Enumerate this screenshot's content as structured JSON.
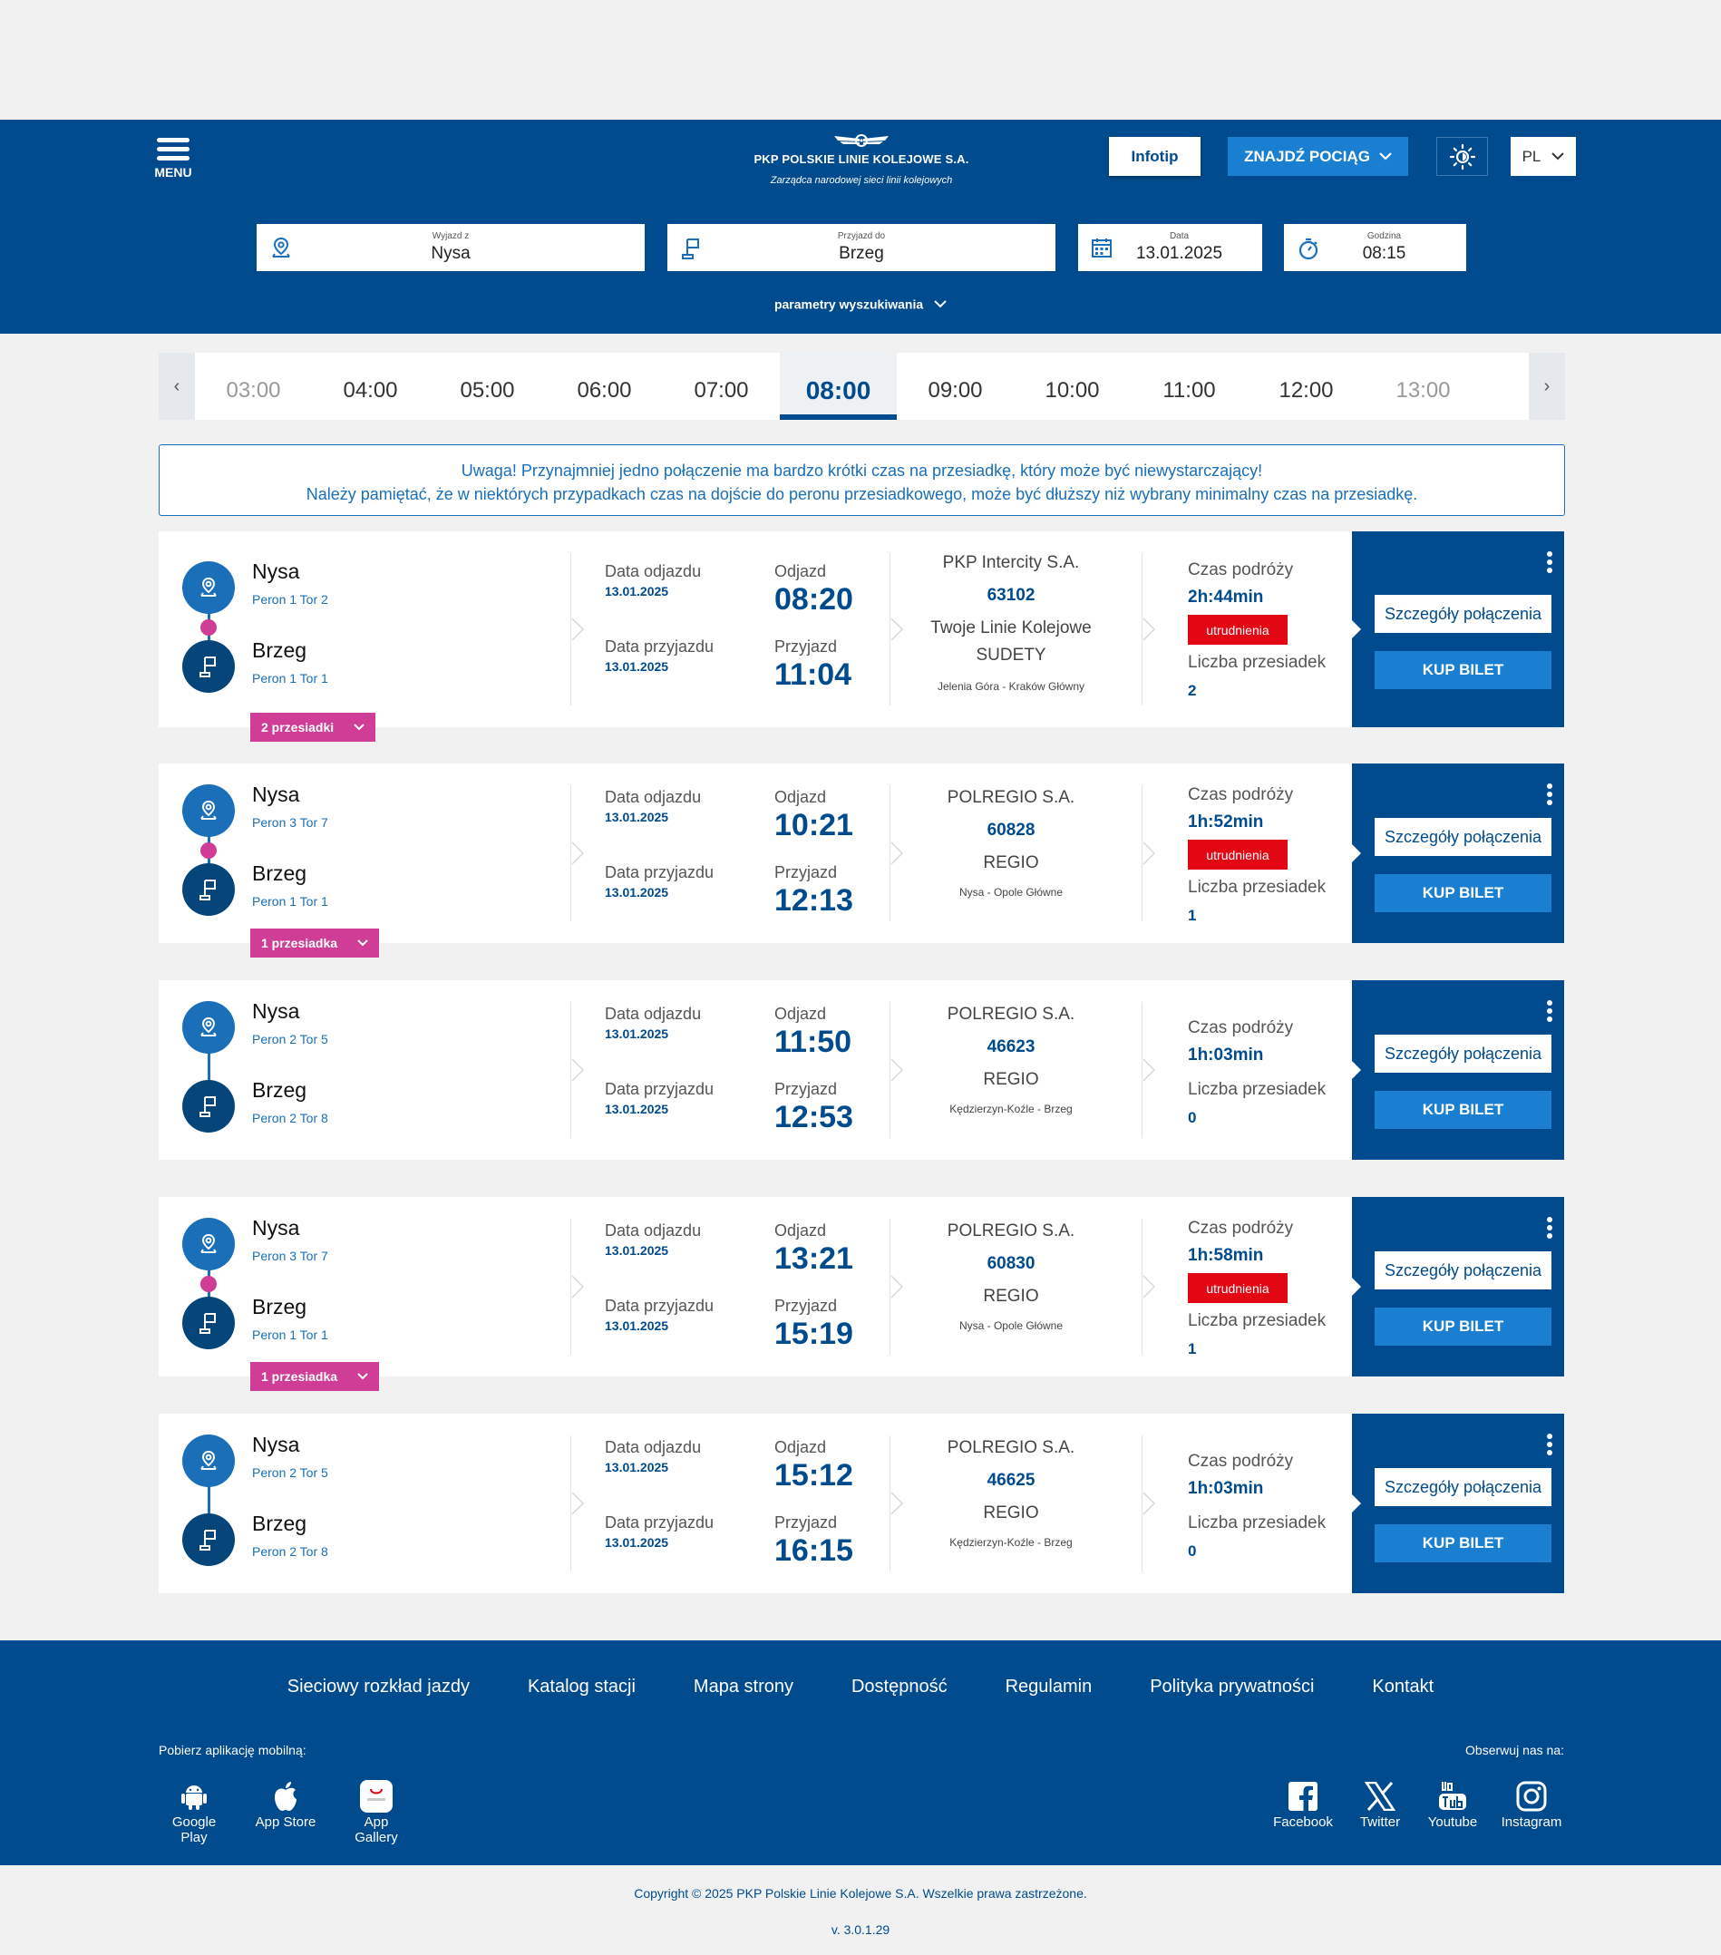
{
  "header": {
    "menu_label": "MENU",
    "logo_name": "PKP POLSKIE LINIE KOLEJOWE S.A.",
    "logo_tagline": "Zarządca narodowej sieci linii kolejowych",
    "infotip_label": "Infotip",
    "find_train_label": "ZNAJDŹ POCIĄG",
    "language": "PL"
  },
  "search": {
    "from_label": "Wyjazd z",
    "from_value": "Nysa",
    "to_label": "Przyjazd do",
    "to_value": "Brzeg",
    "date_label": "Data",
    "date_value": "13.01.2025",
    "time_label": "Godzina",
    "time_value": "08:15",
    "params_label": "parametry wyszukiwania"
  },
  "hours": [
    "03:00",
    "04:00",
    "05:00",
    "06:00",
    "07:00",
    "08:00",
    "09:00",
    "10:00",
    "11:00",
    "12:00",
    "13:00"
  ],
  "active_hour": "08:00",
  "warning": {
    "line1": "Uwaga! Przynajmniej jedno połączenie ma bardzo krótki czas na przesiadkę, który może być niewystarczający!",
    "line2": "Należy pamiętać, że w niektórych przypadkach czas na dojście do peronu przesiadkowego, może być dłuższy niż wybrany minimalny czas na przesiadkę."
  },
  "labels": {
    "dep_date": "Data odjazdu",
    "arr_date": "Data przyjazdu",
    "departure": "Odjazd",
    "arrival": "Przyjazd",
    "travel_time": "Czas podróży",
    "transfers_count": "Liczba przesiadek",
    "details_button": "Szczegóły połączenia",
    "buy_button": "KUP BILET",
    "difficulties": "utrudnienia"
  },
  "connections": [
    {
      "from": "Nysa",
      "from_platform": "Peron 1 Tor 2",
      "to": "Brzeg",
      "to_platform": "Peron 1 Tor 1",
      "dep_date": "13.01.2025",
      "arr_date": "13.01.2025",
      "dep_time": "08:20",
      "arr_time": "11:04",
      "carrier": "PKP Intercity S.A.",
      "train_number": "63102",
      "brand": "Twoje Linie Kolejowe",
      "train_name": "SUDETY",
      "route": "Jelenia Góra - Kraków Główny",
      "duration": "2h:44min",
      "difficulties": true,
      "transfers": "2",
      "transfers_badge": "2 przesiadki"
    },
    {
      "from": "Nysa",
      "from_platform": "Peron 3 Tor 7",
      "to": "Brzeg",
      "to_platform": "Peron 1 Tor 1",
      "dep_date": "13.01.2025",
      "arr_date": "13.01.2025",
      "dep_time": "10:21",
      "arr_time": "12:13",
      "carrier": "POLREGIO S.A.",
      "train_number": "60828",
      "brand": "REGIO",
      "train_name": "",
      "route": "Nysa - Opole Główne",
      "duration": "1h:52min",
      "difficulties": true,
      "transfers": "1",
      "transfers_badge": "1 przesiadka"
    },
    {
      "from": "Nysa",
      "from_platform": "Peron 2 Tor 5",
      "to": "Brzeg",
      "to_platform": "Peron 2 Tor 8",
      "dep_date": "13.01.2025",
      "arr_date": "13.01.2025",
      "dep_time": "11:50",
      "arr_time": "12:53",
      "carrier": "POLREGIO S.A.",
      "train_number": "46623",
      "brand": "REGIO",
      "train_name": "",
      "route": "Kędzierzyn-Koźle - Brzeg",
      "duration": "1h:03min",
      "difficulties": false,
      "transfers": "0",
      "transfers_badge": ""
    },
    {
      "from": "Nysa",
      "from_platform": "Peron 3 Tor 7",
      "to": "Brzeg",
      "to_platform": "Peron 1 Tor 1",
      "dep_date": "13.01.2025",
      "arr_date": "13.01.2025",
      "dep_time": "13:21",
      "arr_time": "15:19",
      "carrier": "POLREGIO S.A.",
      "train_number": "60830",
      "brand": "REGIO",
      "train_name": "",
      "route": "Nysa - Opole Główne",
      "duration": "1h:58min",
      "difficulties": true,
      "transfers": "1",
      "transfers_badge": "1 przesiadka"
    },
    {
      "from": "Nysa",
      "from_platform": "Peron 2 Tor 5",
      "to": "Brzeg",
      "to_platform": "Peron 2 Tor 8",
      "dep_date": "13.01.2025",
      "arr_date": "13.01.2025",
      "dep_time": "15:12",
      "arr_time": "16:15",
      "carrier": "POLREGIO S.A.",
      "train_number": "46625",
      "brand": "REGIO",
      "train_name": "",
      "route": "Kędzierzyn-Koźle - Brzeg",
      "duration": "1h:03min",
      "difficulties": false,
      "transfers": "0",
      "transfers_badge": ""
    }
  ],
  "footer": {
    "links": [
      "Sieciowy rozkład jazdy",
      "Katalog stacji",
      "Mapa strony",
      "Dostępność",
      "Regulamin",
      "Polityka prywatności",
      "Kontakt"
    ],
    "app_label": "Pobierz aplikację mobilną:",
    "stores": [
      "Google Play",
      "App Store",
      "App Gallery"
    ],
    "follow_label": "Obserwuj nas na:",
    "socials": [
      "Facebook",
      "Twitter",
      "Youtube",
      "Instagram"
    ],
    "copyright": "Copyright © 2025 PKP Polskie Linie Kolejowe S.A. Wszelkie prawa zastrzeżone.",
    "version": "v. 3.0.1.29"
  },
  "colors": {
    "primary": "#004b8d",
    "accent": "#1a7fd1",
    "transfer": "#cf3d96",
    "alert": "#e30613"
  }
}
